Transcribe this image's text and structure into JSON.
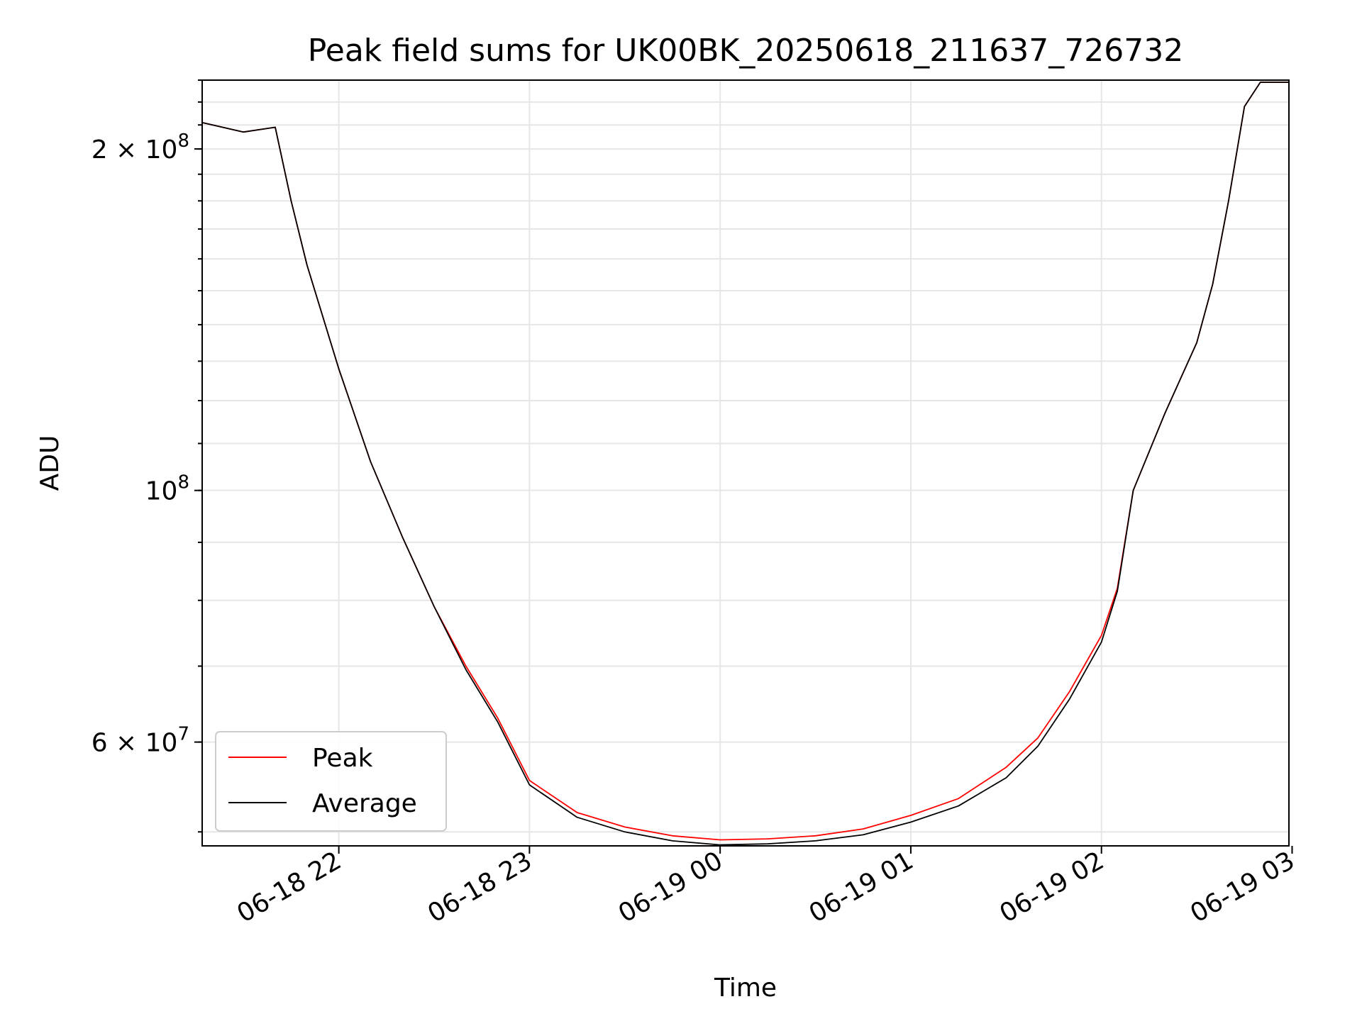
{
  "chart_data": {
    "type": "line",
    "title": "Peak field sums for UK00BK_20250618_211637_726732",
    "xlabel": "Time",
    "ylabel": "ADU",
    "y_scale": "log",
    "grid": true,
    "legend_placement": "lower-left",
    "xlim": [
      "2025-06-18 21:17",
      "2025-06-19 02:59"
    ],
    "ylim": [
      48600000,
      230000000
    ],
    "x_ticks": [
      "06-18 22",
      "06-18 23",
      "06-19 00",
      "06-19 01",
      "06-19 02",
      "06-19 03"
    ],
    "y_ticks": [
      {
        "value": 60000000,
        "base": "6 × 10",
        "exp": "7"
      },
      {
        "value": 100000000,
        "base": "10",
        "exp": "8"
      },
      {
        "value": 200000000,
        "base": "2 × 10",
        "exp": "8"
      }
    ],
    "x": [
      "21:17",
      "21:30",
      "21:40",
      "21:45",
      "21:50",
      "22:00",
      "22:10",
      "22:20",
      "22:30",
      "22:40",
      "22:50",
      "23:00",
      "23:15",
      "23:30",
      "23:45",
      "00:00",
      "00:15",
      "00:30",
      "00:45",
      "01:00",
      "01:15",
      "01:30",
      "01:40",
      "01:50",
      "02:00",
      "02:05",
      "02:10",
      "02:20",
      "02:30",
      "02:35",
      "02:40",
      "02:45",
      "02:50",
      "02:59"
    ],
    "series": [
      {
        "name": "Peak",
        "color": "#ff0000",
        "values": [
          211000000,
          207000000,
          209000000,
          180000000,
          158000000,
          128000000,
          106000000,
          91000000,
          79000000,
          70000000,
          63000000,
          55500000,
          52000000,
          50500000,
          49600000,
          49200000,
          49300000,
          49600000,
          50300000,
          51700000,
          53500000,
          57000000,
          60500000,
          66500000,
          74500000,
          82000000,
          100000000,
          117000000,
          135000000,
          152000000,
          180000000,
          218000000,
          229000000,
          229000000
        ]
      },
      {
        "name": "Average",
        "color": "#000000",
        "values": [
          211000000,
          207000000,
          209000000,
          180000000,
          158000000,
          128000000,
          106000000,
          91000000,
          79000000,
          69500000,
          62500000,
          55000000,
          51500000,
          50000000,
          49100000,
          48700000,
          48800000,
          49100000,
          49700000,
          51000000,
          52700000,
          55800000,
          59500000,
          65500000,
          73500000,
          81500000,
          100000000,
          117000000,
          135000000,
          152000000,
          180000000,
          218000000,
          229000000,
          229000000
        ]
      }
    ]
  }
}
